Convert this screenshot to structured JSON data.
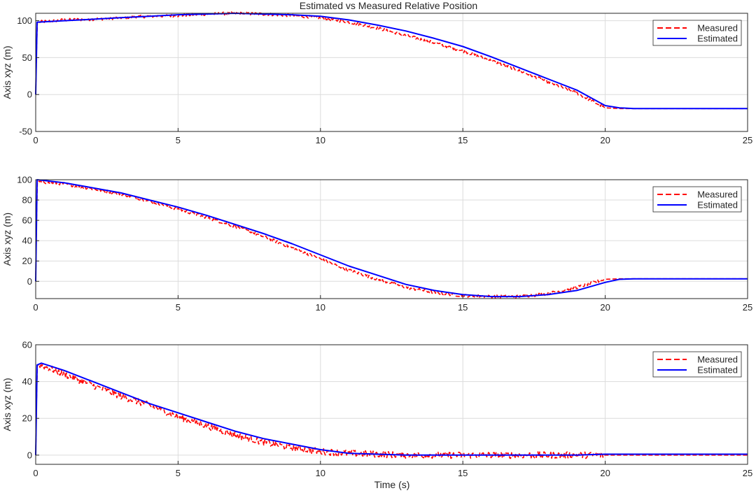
{
  "figure": {
    "title": "Estimated vs Measured Relative Position",
    "xlabel": "Time (s)"
  },
  "colors": {
    "measured": "#ff0000",
    "estimated": "#0000ff",
    "grid": "#dcdcdc",
    "axis": "#262626"
  },
  "chart_data": [
    {
      "type": "line",
      "ylabel": "Axis xyz (m)",
      "xlim": [
        0,
        25
      ],
      "ylim": [
        -50,
        110
      ],
      "xticks": [
        0,
        5,
        10,
        15,
        20,
        25
      ],
      "yticks": [
        -50,
        0,
        50,
        100
      ],
      "grid": true,
      "legend_position": "top-right",
      "series": [
        {
          "name": "Measured",
          "style": "dashed",
          "noise": 2.0,
          "x": [
            0,
            0.05,
            1,
            2,
            3,
            4,
            5,
            6,
            7,
            8,
            9,
            10,
            11,
            12,
            13,
            14,
            15,
            16,
            17,
            18,
            19,
            20,
            20.5,
            21,
            22,
            23,
            24,
            25
          ],
          "y": [
            0,
            98,
            101,
            102,
            104,
            106,
            107,
            109,
            110,
            109,
            107,
            104,
            98,
            90,
            80,
            70,
            59,
            46,
            32,
            17,
            2,
            -18,
            -19,
            -19,
            -19,
            -19,
            -19,
            -19
          ]
        },
        {
          "name": "Estimated",
          "style": "solid",
          "x": [
            0,
            0.05,
            1,
            2,
            3,
            4,
            5,
            6,
            7,
            8,
            9,
            10,
            11,
            12,
            13,
            14,
            15,
            16,
            17,
            18,
            19,
            20,
            20.5,
            21,
            22,
            23,
            24,
            25
          ],
          "y": [
            0,
            98,
            100,
            102,
            104,
            106,
            108,
            109,
            110,
            109,
            108,
            106,
            101,
            94,
            86,
            76,
            65,
            51,
            36,
            21,
            6,
            -15,
            -18,
            -19,
            -19,
            -19,
            -19,
            -19
          ]
        }
      ]
    },
    {
      "type": "line",
      "ylabel": "Axis xyz (m)",
      "xlim": [
        0,
        25
      ],
      "ylim": [
        -17,
        100
      ],
      "xticks": [
        0,
        5,
        10,
        15,
        20,
        25
      ],
      "yticks": [
        0,
        20,
        40,
        60,
        80,
        100
      ],
      "grid": true,
      "legend_position": "top-right",
      "series": [
        {
          "name": "Measured",
          "style": "dashed",
          "noise": 1.5,
          "x": [
            0,
            0.05,
            1,
            2,
            3,
            4,
            5,
            6,
            7,
            8,
            9,
            10,
            11,
            12,
            13,
            14,
            15,
            16,
            17,
            18,
            19,
            20,
            20.5,
            21,
            22,
            23,
            24,
            25
          ],
          "y": [
            0,
            98,
            96,
            91,
            86,
            79,
            71,
            63,
            54,
            44,
            33,
            22,
            11,
            2,
            -6,
            -11,
            -14,
            -15,
            -15,
            -12,
            -6,
            2,
            2.5,
            2.5,
            2.5,
            2.5,
            2.5,
            2.5
          ]
        },
        {
          "name": "Estimated",
          "style": "solid",
          "x": [
            0,
            0.05,
            1,
            2,
            3,
            4,
            5,
            6,
            7,
            8,
            9,
            10,
            11,
            12,
            13,
            14,
            15,
            16,
            17,
            18,
            19,
            20,
            20.5,
            21,
            22,
            23,
            24,
            25
          ],
          "y": [
            0,
            100,
            97,
            92,
            87,
            80,
            73,
            65,
            56,
            47,
            37,
            26,
            15,
            6,
            -3,
            -9,
            -13,
            -15,
            -15,
            -13,
            -9,
            -1,
            2,
            2.5,
            2.5,
            2.5,
            2.5,
            2.5
          ]
        }
      ]
    },
    {
      "type": "line",
      "ylabel": "Axis xyz (m)",
      "xlim": [
        0,
        25
      ],
      "ylim": [
        -5,
        60
      ],
      "xticks": [
        0,
        5,
        10,
        15,
        20,
        25
      ],
      "yticks": [
        0,
        20,
        40,
        60
      ],
      "grid": true,
      "legend_position": "top-right",
      "series": [
        {
          "name": "Measured",
          "style": "dashed",
          "noise": 1.8,
          "x": [
            0,
            0.05,
            0.2,
            1,
            2,
            3,
            4,
            5,
            6,
            7,
            8,
            9,
            10,
            11,
            12,
            13,
            14,
            15,
            16,
            17,
            18,
            19,
            19.9,
            20,
            21,
            22,
            23,
            24,
            25
          ],
          "y": [
            0,
            49,
            49,
            44,
            38,
            32,
            27,
            21,
            16,
            11,
            7,
            4,
            2,
            1,
            0.5,
            0,
            0,
            0,
            0,
            0,
            0,
            0,
            0,
            0,
            0,
            0,
            0,
            0,
            0
          ]
        },
        {
          "name": "Estimated",
          "style": "solid",
          "x": [
            0,
            0.05,
            0.2,
            1,
            2,
            3,
            4,
            5,
            6,
            7,
            8,
            9,
            10,
            11,
            12,
            13,
            14,
            15,
            16,
            17,
            18,
            19,
            20,
            21,
            22,
            23,
            24,
            25
          ],
          "y": [
            0,
            49,
            50,
            46,
            40,
            34,
            28,
            23,
            18,
            13,
            9,
            6,
            3,
            1,
            0.5,
            0,
            0,
            0,
            0,
            0,
            0,
            0,
            0.5,
            0.5,
            0.5,
            0.5,
            0.5,
            0.5
          ]
        }
      ]
    }
  ]
}
